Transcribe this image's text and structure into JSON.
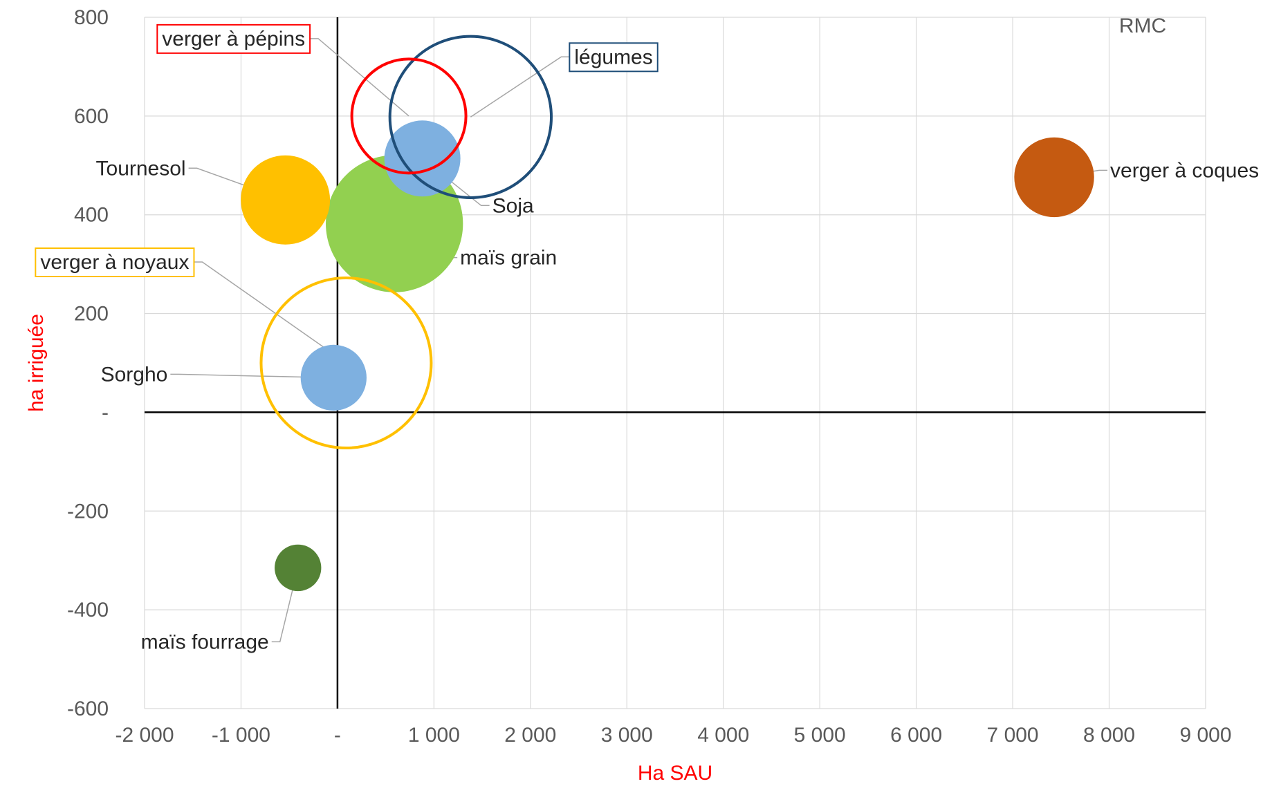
{
  "chart_data": {
    "type": "bubble",
    "xlabel": "Ha SAU",
    "ylabel": "ha irriguée",
    "corner_label": "RMC",
    "xlim": [
      -2000,
      9000
    ],
    "ylim": [
      -600,
      800
    ],
    "x_ticks": [
      -2000,
      -1000,
      0,
      1000,
      2000,
      3000,
      4000,
      5000,
      6000,
      7000,
      8000,
      9000
    ],
    "x_tick_labels": [
      "-2 000",
      "-1 000",
      "-",
      "1 000",
      "2 000",
      "3 000",
      "4 000",
      "5 000",
      "6 000",
      "7 000",
      "8 000",
      "9 000"
    ],
    "y_ticks": [
      800,
      600,
      400,
      200,
      0,
      -200,
      -400,
      -600
    ],
    "y_tick_labels": [
      "800",
      "600",
      "400",
      "200",
      "-",
      "-200",
      "-400",
      "-600"
    ],
    "grid": true,
    "label_color": "#FF0000",
    "series": [
      {
        "name": "verger à pépins",
        "x": 740,
        "y": 600,
        "size": 9,
        "style": "ring",
        "color": "#FF0000",
        "boxed": true
      },
      {
        "name": "légumes",
        "x": 1380,
        "y": 598,
        "size": 18,
        "style": "ring",
        "color": "#1F4E79",
        "boxed": true
      },
      {
        "name": "Soja",
        "x": 880,
        "y": 514,
        "size": 4,
        "style": "fill",
        "color": "#7EB0E0",
        "boxed": false
      },
      {
        "name": "Tournesol",
        "x": -540,
        "y": 430,
        "size": 5.5,
        "style": "fill",
        "color": "#FFC000",
        "boxed": false
      },
      {
        "name": "maïs grain",
        "x": 590,
        "y": 382,
        "size": 13,
        "style": "fill",
        "color": "#92D050",
        "boxed": false
      },
      {
        "name": "verger à noyaux",
        "x": 90,
        "y": 100,
        "size": 20,
        "style": "ring",
        "color": "#FFC000",
        "boxed": true
      },
      {
        "name": "Sorgho",
        "x": -40,
        "y": 70,
        "size": 3,
        "style": "fill",
        "color": "#7EB0E0",
        "boxed": false
      },
      {
        "name": "verger à coques",
        "x": 7430,
        "y": 476,
        "size": 4.4,
        "style": "fill",
        "color": "#C55A11",
        "boxed": false
      },
      {
        "name": "maïs fourrage",
        "x": -410,
        "y": -315,
        "size": 1.5,
        "style": "fill",
        "color": "#548235",
        "boxed": false
      }
    ]
  }
}
